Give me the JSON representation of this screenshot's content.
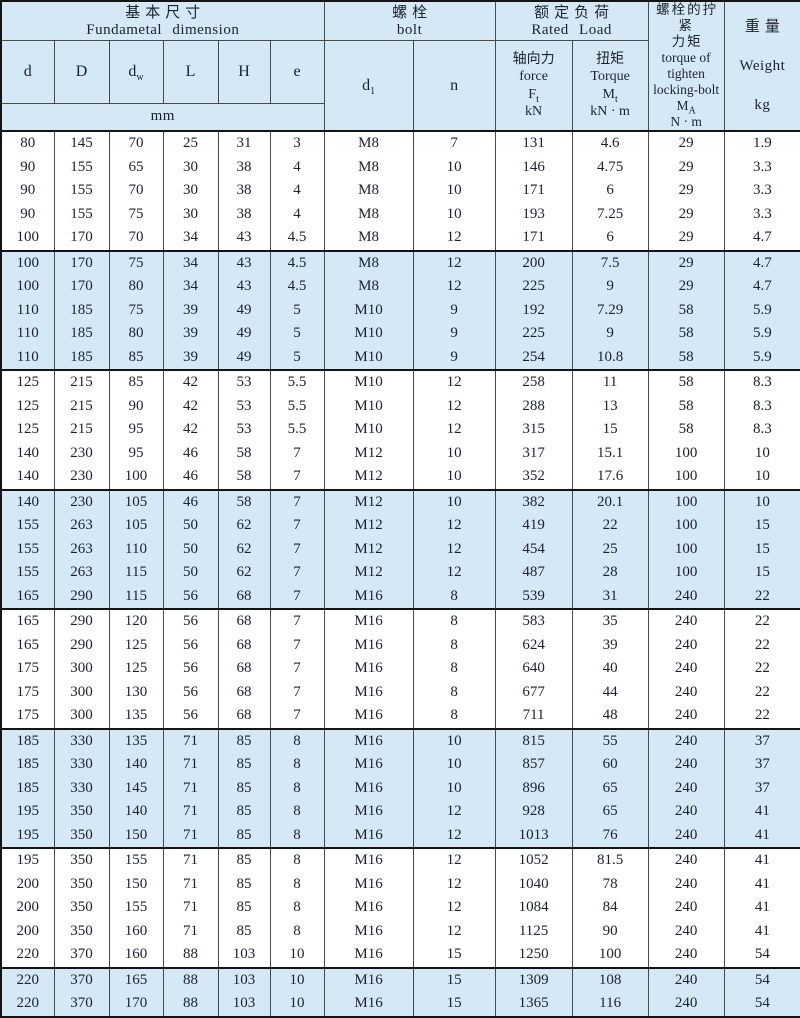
{
  "table": {
    "header": {
      "fundamental": {
        "zh": "基本尺寸",
        "en": "Fundametal dimension"
      },
      "bolt": {
        "zh": "螺栓",
        "en": "bolt"
      },
      "rated_load": {
        "zh": "额定负荷",
        "en": "Rated Load"
      },
      "locking_torque": {
        "zh_line1": "螺栓的拧紧",
        "zh_line2": "力矩",
        "en_line1": "torque of",
        "en_line2": "tighten",
        "en_line3": "locking-bolt",
        "symbol": "M",
        "symbol_sub": "A",
        "unit": "N · m"
      },
      "weight": {
        "zh": "重量",
        "en": "Weight",
        "unit": "kg"
      },
      "col_d": "d",
      "col_D": "D",
      "col_dw_base": "d",
      "col_dw_sub": "w",
      "col_L": "L",
      "col_H": "H",
      "col_e": "e",
      "unit_mm": "mm",
      "col_d1_base": "d",
      "col_d1_sub": "1",
      "col_n": "n",
      "force": {
        "zh": "轴向力",
        "en": "force",
        "symbol": "F",
        "symbol_sub": "t",
        "unit": "kN"
      },
      "torque": {
        "zh": "扭矩",
        "en": "Torque",
        "symbol": "M",
        "symbol_sub": "t",
        "unit": "kN · m"
      }
    },
    "rows": [
      {
        "shaded": false,
        "cells": [
          "80",
          "145",
          "70",
          "25",
          "31",
          "3",
          "M8",
          "7",
          "131",
          "4.6",
          "29",
          "1.9"
        ]
      },
      {
        "shaded": false,
        "cells": [
          "90",
          "155",
          "65",
          "30",
          "38",
          "4",
          "M8",
          "10",
          "146",
          "4.75",
          "29",
          "3.3"
        ]
      },
      {
        "shaded": false,
        "cells": [
          "90",
          "155",
          "70",
          "30",
          "38",
          "4",
          "M8",
          "10",
          "171",
          "6",
          "29",
          "3.3"
        ]
      },
      {
        "shaded": false,
        "cells": [
          "90",
          "155",
          "75",
          "30",
          "38",
          "4",
          "M8",
          "10",
          "193",
          "7.25",
          "29",
          "3.3"
        ]
      },
      {
        "shaded": false,
        "cells": [
          "100",
          "170",
          "70",
          "34",
          "43",
          "4.5",
          "M8",
          "12",
          "171",
          "6",
          "29",
          "4.7"
        ]
      },
      {
        "shaded": true,
        "cells": [
          "100",
          "170",
          "75",
          "34",
          "43",
          "4.5",
          "M8",
          "12",
          "200",
          "7.5",
          "29",
          "4.7"
        ]
      },
      {
        "shaded": true,
        "cells": [
          "100",
          "170",
          "80",
          "34",
          "43",
          "4.5",
          "M8",
          "12",
          "225",
          "9",
          "29",
          "4.7"
        ]
      },
      {
        "shaded": true,
        "cells": [
          "110",
          "185",
          "75",
          "39",
          "49",
          "5",
          "M10",
          "9",
          "192",
          "7.29",
          "58",
          "5.9"
        ]
      },
      {
        "shaded": true,
        "cells": [
          "110",
          "185",
          "80",
          "39",
          "49",
          "5",
          "M10",
          "9",
          "225",
          "9",
          "58",
          "5.9"
        ]
      },
      {
        "shaded": true,
        "cells": [
          "110",
          "185",
          "85",
          "39",
          "49",
          "5",
          "M10",
          "9",
          "254",
          "10.8",
          "58",
          "5.9"
        ]
      },
      {
        "shaded": false,
        "cells": [
          "125",
          "215",
          "85",
          "42",
          "53",
          "5.5",
          "M10",
          "12",
          "258",
          "11",
          "58",
          "8.3"
        ]
      },
      {
        "shaded": false,
        "cells": [
          "125",
          "215",
          "90",
          "42",
          "53",
          "5.5",
          "M10",
          "12",
          "288",
          "13",
          "58",
          "8.3"
        ]
      },
      {
        "shaded": false,
        "cells": [
          "125",
          "215",
          "95",
          "42",
          "53",
          "5.5",
          "M10",
          "12",
          "315",
          "15",
          "58",
          "8.3"
        ]
      },
      {
        "shaded": false,
        "cells": [
          "140",
          "230",
          "95",
          "46",
          "58",
          "7",
          "M12",
          "10",
          "317",
          "15.1",
          "100",
          "10"
        ]
      },
      {
        "shaded": false,
        "cells": [
          "140",
          "230",
          "100",
          "46",
          "58",
          "7",
          "M12",
          "10",
          "352",
          "17.6",
          "100",
          "10"
        ]
      },
      {
        "shaded": true,
        "cells": [
          "140",
          "230",
          "105",
          "46",
          "58",
          "7",
          "M12",
          "10",
          "382",
          "20.1",
          "100",
          "10"
        ]
      },
      {
        "shaded": true,
        "cells": [
          "155",
          "263",
          "105",
          "50",
          "62",
          "7",
          "M12",
          "12",
          "419",
          "22",
          "100",
          "15"
        ]
      },
      {
        "shaded": true,
        "cells": [
          "155",
          "263",
          "110",
          "50",
          "62",
          "7",
          "M12",
          "12",
          "454",
          "25",
          "100",
          "15"
        ]
      },
      {
        "shaded": true,
        "cells": [
          "155",
          "263",
          "115",
          "50",
          "62",
          "7",
          "M12",
          "12",
          "487",
          "28",
          "100",
          "15"
        ]
      },
      {
        "shaded": true,
        "cells": [
          "165",
          "290",
          "115",
          "56",
          "68",
          "7",
          "M16",
          "8",
          "539",
          "31",
          "240",
          "22"
        ]
      },
      {
        "shaded": false,
        "cells": [
          "165",
          "290",
          "120",
          "56",
          "68",
          "7",
          "M16",
          "8",
          "583",
          "35",
          "240",
          "22"
        ]
      },
      {
        "shaded": false,
        "cells": [
          "165",
          "290",
          "125",
          "56",
          "68",
          "7",
          "M16",
          "8",
          "624",
          "39",
          "240",
          "22"
        ]
      },
      {
        "shaded": false,
        "cells": [
          "175",
          "300",
          "125",
          "56",
          "68",
          "7",
          "M16",
          "8",
          "640",
          "40",
          "240",
          "22"
        ]
      },
      {
        "shaded": false,
        "cells": [
          "175",
          "300",
          "130",
          "56",
          "68",
          "7",
          "M16",
          "8",
          "677",
          "44",
          "240",
          "22"
        ]
      },
      {
        "shaded": false,
        "cells": [
          "175",
          "300",
          "135",
          "56",
          "68",
          "7",
          "M16",
          "8",
          "711",
          "48",
          "240",
          "22"
        ]
      },
      {
        "shaded": true,
        "cells": [
          "185",
          "330",
          "135",
          "71",
          "85",
          "8",
          "M16",
          "10",
          "815",
          "55",
          "240",
          "37"
        ]
      },
      {
        "shaded": true,
        "cells": [
          "185",
          "330",
          "140",
          "71",
          "85",
          "8",
          "M16",
          "10",
          "857",
          "60",
          "240",
          "37"
        ]
      },
      {
        "shaded": true,
        "cells": [
          "185",
          "330",
          "145",
          "71",
          "85",
          "8",
          "M16",
          "10",
          "896",
          "65",
          "240",
          "37"
        ]
      },
      {
        "shaded": true,
        "cells": [
          "195",
          "350",
          "140",
          "71",
          "85",
          "8",
          "M16",
          "12",
          "928",
          "65",
          "240",
          "41"
        ]
      },
      {
        "shaded": true,
        "cells": [
          "195",
          "350",
          "150",
          "71",
          "85",
          "8",
          "M16",
          "12",
          "1013",
          "76",
          "240",
          "41"
        ]
      },
      {
        "shaded": false,
        "cells": [
          "195",
          "350",
          "155",
          "71",
          "85",
          "8",
          "M16",
          "12",
          "1052",
          "81.5",
          "240",
          "41"
        ]
      },
      {
        "shaded": false,
        "cells": [
          "200",
          "350",
          "150",
          "71",
          "85",
          "8",
          "M16",
          "12",
          "1040",
          "78",
          "240",
          "41"
        ]
      },
      {
        "shaded": false,
        "cells": [
          "200",
          "350",
          "155",
          "71",
          "85",
          "8",
          "M16",
          "12",
          "1084",
          "84",
          "240",
          "41"
        ]
      },
      {
        "shaded": false,
        "cells": [
          "200",
          "350",
          "160",
          "71",
          "85",
          "8",
          "M16",
          "12",
          "1125",
          "90",
          "240",
          "41"
        ]
      },
      {
        "shaded": false,
        "cells": [
          "220",
          "370",
          "160",
          "88",
          "103",
          "10",
          "M16",
          "15",
          "1250",
          "100",
          "240",
          "54"
        ]
      },
      {
        "shaded": true,
        "cells": [
          "220",
          "370",
          "165",
          "88",
          "103",
          "10",
          "M16",
          "15",
          "1309",
          "108",
          "240",
          "54"
        ]
      },
      {
        "shaded": true,
        "cells": [
          "220",
          "370",
          "170",
          "88",
          "103",
          "10",
          "M16",
          "15",
          "1365",
          "116",
          "240",
          "54"
        ]
      }
    ]
  },
  "colors": {
    "band_blue": "#d4e8f6",
    "row_white": "#ffffff",
    "grid_line": "#4a4a4a",
    "group_line": "#141414",
    "text": "#1c222b"
  }
}
